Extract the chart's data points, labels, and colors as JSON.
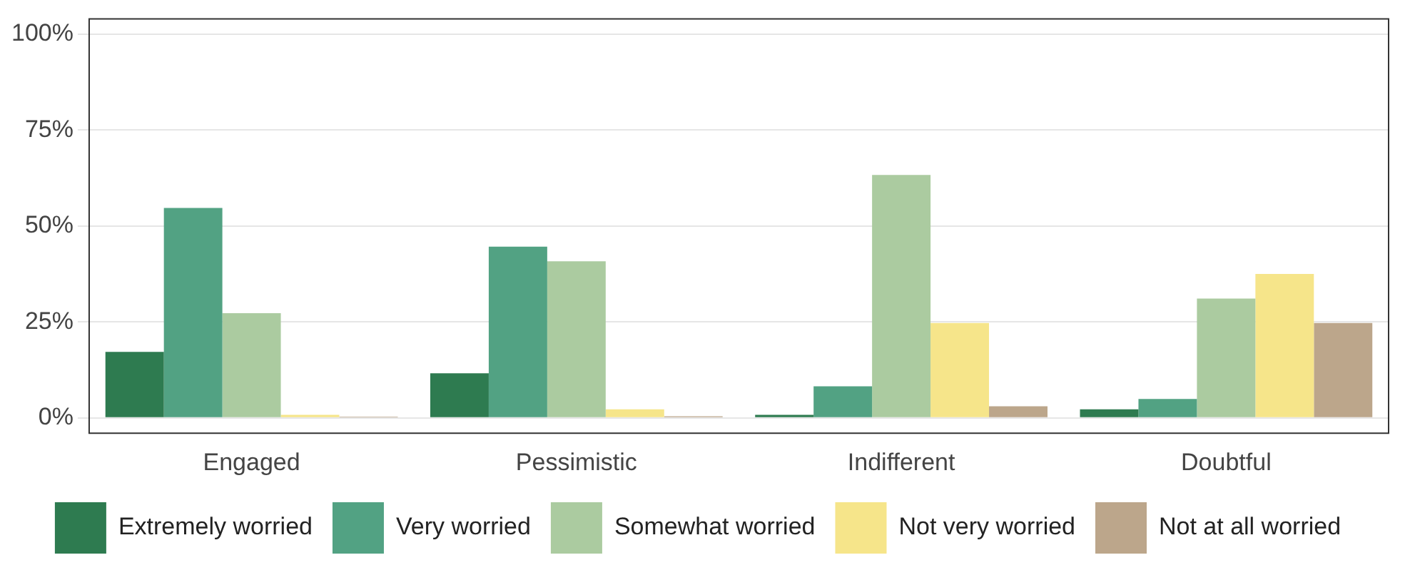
{
  "chart_data": {
    "type": "bar",
    "categories": [
      "Engaged",
      "Pessimistic",
      "Indifferent",
      "Doubtful"
    ],
    "series": [
      {
        "name": "Extremely worried",
        "color": "#2e7b50",
        "values": [
          17.2,
          11.6,
          0.8,
          2.2
        ]
      },
      {
        "name": "Very worried",
        "color": "#52a283",
        "values": [
          54.7,
          44.6,
          8.2,
          4.9
        ]
      },
      {
        "name": "Somewhat worried",
        "color": "#abcba0",
        "values": [
          27.3,
          40.8,
          63.3,
          31.1
        ]
      },
      {
        "name": "Not very worried",
        "color": "#f6e58a",
        "values": [
          0.8,
          2.2,
          24.7,
          37.5
        ]
      },
      {
        "name": "Not at all worried",
        "color": "#bca68b",
        "values": [
          0.3,
          0.4,
          3.0,
          24.7
        ]
      }
    ],
    "ylim": [
      -4,
      104
    ],
    "yticks": [
      {
        "value": 0,
        "label": "0%"
      },
      {
        "value": 25,
        "label": "25%"
      },
      {
        "value": 50,
        "label": "50%"
      },
      {
        "value": 75,
        "label": "75%"
      },
      {
        "value": 100,
        "label": "100%"
      }
    ],
    "grid": "y",
    "legend": "bottom"
  }
}
